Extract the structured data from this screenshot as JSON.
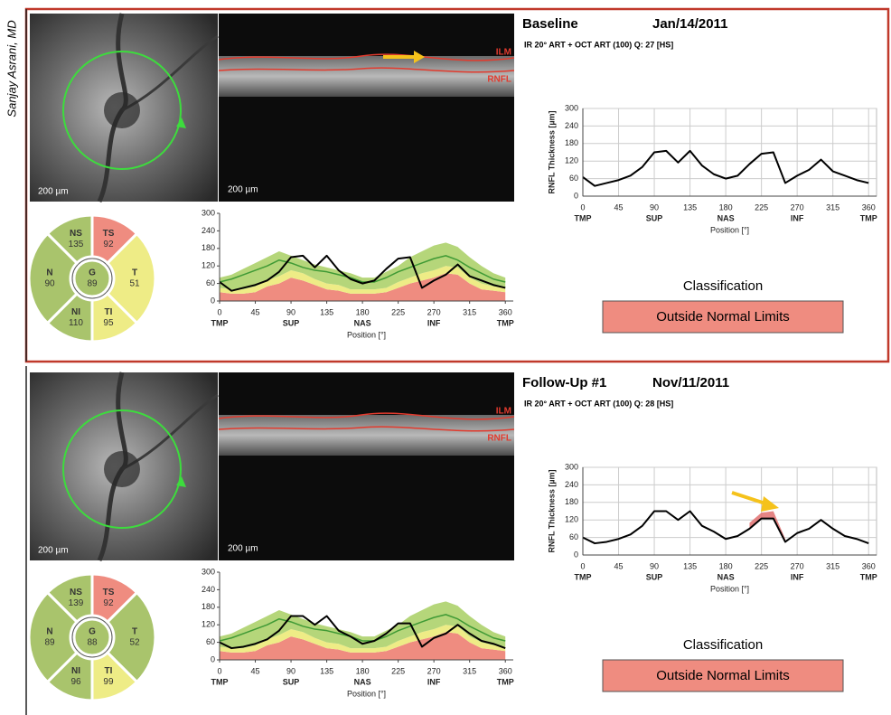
{
  "author": "Sanjay Asrani, MD",
  "panels": [
    {
      "label": "Baseline",
      "date": "Jan/14/2011",
      "scan": "IR 20° ART + OCT ART (100) Q: 27 [HS]",
      "fundus_scale": "200 µm",
      "oct_scale": "200 µm",
      "ilm": "ILM",
      "rnfl": "RNFL",
      "sectors": [
        {
          "name": "NS",
          "value": 135,
          "color": "#a9c46c"
        },
        {
          "name": "TS",
          "value": 92,
          "color": "#ef8c80"
        },
        {
          "name": "T",
          "value": 51,
          "color": "#eeec86"
        },
        {
          "name": "TI",
          "value": 95,
          "color": "#eeec86"
        },
        {
          "name": "NI",
          "value": 110,
          "color": "#a9c46c"
        },
        {
          "name": "N",
          "value": 90,
          "color": "#a9c46c"
        },
        {
          "name": "G",
          "value": 89,
          "color": "#a9c46c"
        }
      ],
      "classification_title": "Classification",
      "classification": "Outside Normal Limits",
      "classification_color": "#ef8c80"
    },
    {
      "label": "Follow-Up #1",
      "date": "Nov/11/2011",
      "scan": "IR 20° ART + OCT ART (100) Q: 28 [HS]",
      "fundus_scale": "200 µm",
      "oct_scale": "200 µm",
      "ilm": "ILM",
      "rnfl": "RNFL",
      "sectors": [
        {
          "name": "NS",
          "value": 139,
          "color": "#a9c46c"
        },
        {
          "name": "TS",
          "value": 92,
          "color": "#ef8c80"
        },
        {
          "name": "T",
          "value": 52,
          "color": "#a9c46c"
        },
        {
          "name": "TI",
          "value": 99,
          "color": "#eeec86"
        },
        {
          "name": "NI",
          "value": 96,
          "color": "#a9c46c"
        },
        {
          "name": "N",
          "value": 89,
          "color": "#a9c46c"
        },
        {
          "name": "G",
          "value": 88,
          "color": "#a9c46c"
        }
      ],
      "classification_title": "Classification",
      "classification": "Outside Normal Limits",
      "classification_color": "#ef8c80"
    }
  ],
  "chart_data": [
    {
      "type": "line",
      "ylabel": "RNFL Thickness [µm]",
      "xlabel": "Position [°]",
      "grid": true,
      "x": [
        0,
        15,
        30,
        45,
        60,
        75,
        90,
        105,
        120,
        135,
        150,
        165,
        180,
        195,
        210,
        225,
        240,
        255,
        270,
        285,
        300,
        315,
        330,
        345,
        360
      ],
      "xlim": [
        0,
        370
      ],
      "ylim": [
        0,
        300
      ],
      "xticks": [
        0,
        45,
        90,
        135,
        180,
        225,
        270,
        315,
        360
      ],
      "yticks": [
        0,
        60,
        120,
        180,
        240,
        300
      ],
      "region_labels": [
        {
          "value": 0,
          "label": "TMP"
        },
        {
          "value": 90,
          "label": "SUP"
        },
        {
          "value": 180,
          "label": "NAS"
        },
        {
          "value": 270,
          "label": "INF"
        },
        {
          "value": 360,
          "label": "TMP"
        }
      ],
      "series": [
        {
          "style": "line",
          "color": "#000000",
          "values": [
            65,
            35,
            45,
            55,
            70,
            100,
            150,
            155,
            115,
            155,
            105,
            75,
            60,
            70,
            110,
            145,
            150,
            45,
            70,
            90,
            125,
            85,
            70,
            55,
            45
          ]
        }
      ]
    },
    {
      "type": "line",
      "xlabel": "Position [°]",
      "grid": false,
      "x": [
        0,
        15,
        30,
        45,
        60,
        75,
        90,
        105,
        120,
        135,
        150,
        165,
        180,
        195,
        210,
        225,
        240,
        255,
        270,
        285,
        300,
        315,
        330,
        345,
        360
      ],
      "xlim": [
        0,
        370
      ],
      "ylim": [
        0,
        300
      ],
      "xticks": [
        0,
        45,
        90,
        135,
        180,
        225,
        270,
        315,
        360
      ],
      "yticks": [
        0,
        60,
        120,
        180,
        240,
        300
      ],
      "region_labels": [
        {
          "value": 0,
          "label": "TMP"
        },
        {
          "value": 90,
          "label": "SUP"
        },
        {
          "value": 180,
          "label": "NAS"
        },
        {
          "value": 270,
          "label": "INF"
        },
        {
          "value": 360,
          "label": "TMP"
        }
      ],
      "series": [
        {
          "style": "stack",
          "color": "#ef8c80",
          "values": [
            30,
            25,
            25,
            30,
            50,
            60,
            80,
            70,
            55,
            40,
            35,
            25,
            25,
            25,
            30,
            45,
            60,
            70,
            80,
            95,
            90,
            60,
            40,
            35,
            30
          ]
        },
        {
          "style": "stack",
          "color": "#eeec86",
          "values": [
            15,
            15,
            15,
            20,
            20,
            25,
            25,
            25,
            20,
            20,
            20,
            15,
            15,
            15,
            15,
            20,
            20,
            25,
            25,
            25,
            25,
            20,
            20,
            15,
            15
          ]
        },
        {
          "style": "stack",
          "color": "#b5d67a",
          "values": [
            35,
            50,
            70,
            80,
            80,
            85,
            50,
            45,
            50,
            55,
            50,
            55,
            40,
            40,
            55,
            55,
            70,
            75,
            85,
            80,
            70,
            70,
            60,
            45,
            35
          ]
        },
        {
          "style": "line",
          "color": "#3f9a35",
          "values": [
            65,
            75,
            90,
            105,
            120,
            140,
            130,
            115,
            105,
            100,
            90,
            80,
            65,
            65,
            80,
            100,
            115,
            130,
            145,
            155,
            140,
            115,
            95,
            75,
            65
          ]
        },
        {
          "style": "line",
          "color": "#000000",
          "values": [
            65,
            35,
            45,
            55,
            70,
            100,
            150,
            155,
            115,
            155,
            105,
            75,
            60,
            70,
            110,
            145,
            150,
            45,
            70,
            90,
            125,
            85,
            70,
            55,
            45
          ]
        }
      ]
    },
    {
      "type": "line",
      "ylabel": "RNFL Thickness [µm]",
      "xlabel": "Position [°]",
      "grid": true,
      "x": [
        0,
        15,
        30,
        45,
        60,
        75,
        90,
        105,
        120,
        135,
        150,
        165,
        180,
        195,
        210,
        225,
        240,
        255,
        270,
        285,
        300,
        315,
        330,
        345,
        360
      ],
      "xlim": [
        0,
        370
      ],
      "ylim": [
        0,
        300
      ],
      "xticks": [
        0,
        45,
        90,
        135,
        180,
        225,
        270,
        315,
        360
      ],
      "yticks": [
        0,
        60,
        120,
        180,
        240,
        300
      ],
      "region_labels": [
        {
          "value": 0,
          "label": "TMP"
        },
        {
          "value": 90,
          "label": "SUP"
        },
        {
          "value": 180,
          "label": "NAS"
        },
        {
          "value": 270,
          "label": "INF"
        },
        {
          "value": 360,
          "label": "TMP"
        }
      ],
      "series": [
        {
          "style": "band",
          "color": "#e07070",
          "values": [
            null,
            null,
            null,
            null,
            null,
            null,
            null,
            null,
            null,
            null,
            null,
            null,
            null,
            null,
            110,
            145,
            150,
            55,
            null,
            null,
            null,
            null,
            null,
            null,
            null
          ],
          "base": [
            null,
            null,
            null,
            null,
            null,
            null,
            null,
            null,
            null,
            null,
            null,
            null,
            null,
            null,
            90,
            125,
            125,
            45,
            null,
            null,
            null,
            null,
            null,
            null,
            null
          ]
        },
        {
          "style": "line",
          "color": "#000000",
          "values": [
            60,
            40,
            45,
            55,
            70,
            100,
            150,
            150,
            120,
            150,
            100,
            80,
            55,
            65,
            90,
            125,
            125,
            45,
            75,
            90,
            120,
            90,
            65,
            55,
            40
          ]
        }
      ]
    },
    {
      "type": "line",
      "xlabel": "Position [°]",
      "grid": false,
      "x": [
        0,
        15,
        30,
        45,
        60,
        75,
        90,
        105,
        120,
        135,
        150,
        165,
        180,
        195,
        210,
        225,
        240,
        255,
        270,
        285,
        300,
        315,
        330,
        345,
        360
      ],
      "xlim": [
        0,
        370
      ],
      "ylim": [
        0,
        300
      ],
      "xticks": [
        0,
        45,
        90,
        135,
        180,
        225,
        270,
        315,
        360
      ],
      "yticks": [
        0,
        60,
        120,
        180,
        240,
        300
      ],
      "region_labels": [
        {
          "value": 0,
          "label": "TMP"
        },
        {
          "value": 90,
          "label": "SUP"
        },
        {
          "value": 180,
          "label": "NAS"
        },
        {
          "value": 270,
          "label": "INF"
        },
        {
          "value": 360,
          "label": "TMP"
        }
      ],
      "series": [
        {
          "style": "stack",
          "color": "#ef8c80",
          "values": [
            30,
            25,
            25,
            30,
            50,
            60,
            80,
            70,
            55,
            40,
            35,
            25,
            25,
            25,
            30,
            45,
            60,
            70,
            80,
            95,
            90,
            60,
            40,
            35,
            30
          ]
        },
        {
          "style": "stack",
          "color": "#eeec86",
          "values": [
            15,
            15,
            15,
            20,
            20,
            25,
            25,
            25,
            20,
            20,
            20,
            15,
            15,
            15,
            15,
            20,
            20,
            25,
            25,
            25,
            25,
            20,
            20,
            15,
            15
          ]
        },
        {
          "style": "stack",
          "color": "#b5d67a",
          "values": [
            35,
            50,
            70,
            80,
            80,
            85,
            50,
            45,
            50,
            55,
            50,
            55,
            40,
            40,
            55,
            55,
            70,
            75,
            85,
            80,
            70,
            70,
            60,
            45,
            35
          ]
        },
        {
          "style": "line",
          "color": "#3f9a35",
          "values": [
            65,
            75,
            90,
            105,
            120,
            140,
            130,
            115,
            105,
            100,
            90,
            80,
            65,
            65,
            80,
            100,
            115,
            130,
            145,
            155,
            140,
            115,
            95,
            75,
            65
          ]
        },
        {
          "style": "line",
          "color": "#000000",
          "values": [
            60,
            40,
            45,
            55,
            70,
            100,
            150,
            150,
            120,
            150,
            100,
            80,
            55,
            65,
            90,
            125,
            125,
            45,
            75,
            90,
            120,
            90,
            65,
            55,
            40
          ]
        }
      ]
    }
  ]
}
